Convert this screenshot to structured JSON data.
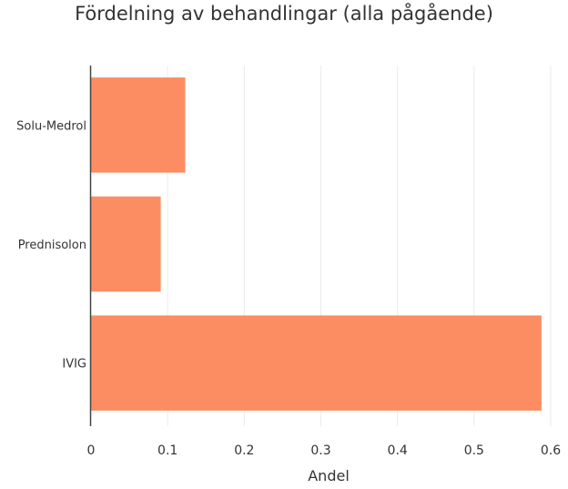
{
  "chart_data": {
    "type": "bar",
    "orientation": "horizontal",
    "title": "Fördelning av behandlingar (alla pågående)",
    "xlabel": "Andel",
    "ylabel": "",
    "categories": [
      "IVIG",
      "Prednisolon",
      "Solu-Medrol"
    ],
    "values": [
      0.588,
      0.091,
      0.123
    ],
    "xlim": [
      0,
      0.6
    ],
    "xticks": [
      0,
      0.1,
      0.2,
      0.3,
      0.4,
      0.5,
      0.6
    ],
    "xtick_labels": [
      "0",
      "0.1",
      "0.2",
      "0.3",
      "0.4",
      "0.5",
      "0.6"
    ],
    "grid": true,
    "legend": "none",
    "bar_color": "#fc8d62"
  }
}
